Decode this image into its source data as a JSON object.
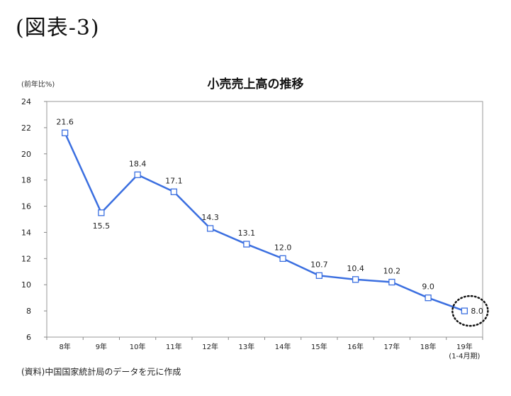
{
  "figure_heading": "(図表-3)",
  "chart_data": {
    "type": "line",
    "title": "小売売上高の推移",
    "ylabel": "(前年比%)",
    "categories": [
      "8年",
      "9年",
      "10年",
      "11年",
      "12年",
      "13年",
      "14年",
      "15年",
      "16年",
      "17年",
      "18年",
      "19年"
    ],
    "category_sublabels": [
      "",
      "",
      "",
      "",
      "",
      "",
      "",
      "",
      "",
      "",
      "",
      "(1-4月期)"
    ],
    "series": [
      {
        "values": [
          21.6,
          15.5,
          18.4,
          17.1,
          14.3,
          13.1,
          12.0,
          10.7,
          10.4,
          10.2,
          9.0,
          8.0
        ]
      }
    ],
    "data_labels": [
      "21.6",
      "15.5",
      "18.4",
      "17.1",
      "14.3",
      "13.1",
      "12.0",
      "10.7",
      "10.4",
      "10.2",
      "9.0",
      "8.0"
    ],
    "ylim": [
      6,
      24
    ],
    "yticks": [
      6,
      8,
      10,
      12,
      14,
      16,
      18,
      20,
      22,
      24
    ],
    "grid": false,
    "line_color": "#3b6fe0",
    "plot_background": "#ffffff",
    "highlighted_point": "19年"
  },
  "source_note": "(資料)中国国家統計局のデータを元に作成"
}
